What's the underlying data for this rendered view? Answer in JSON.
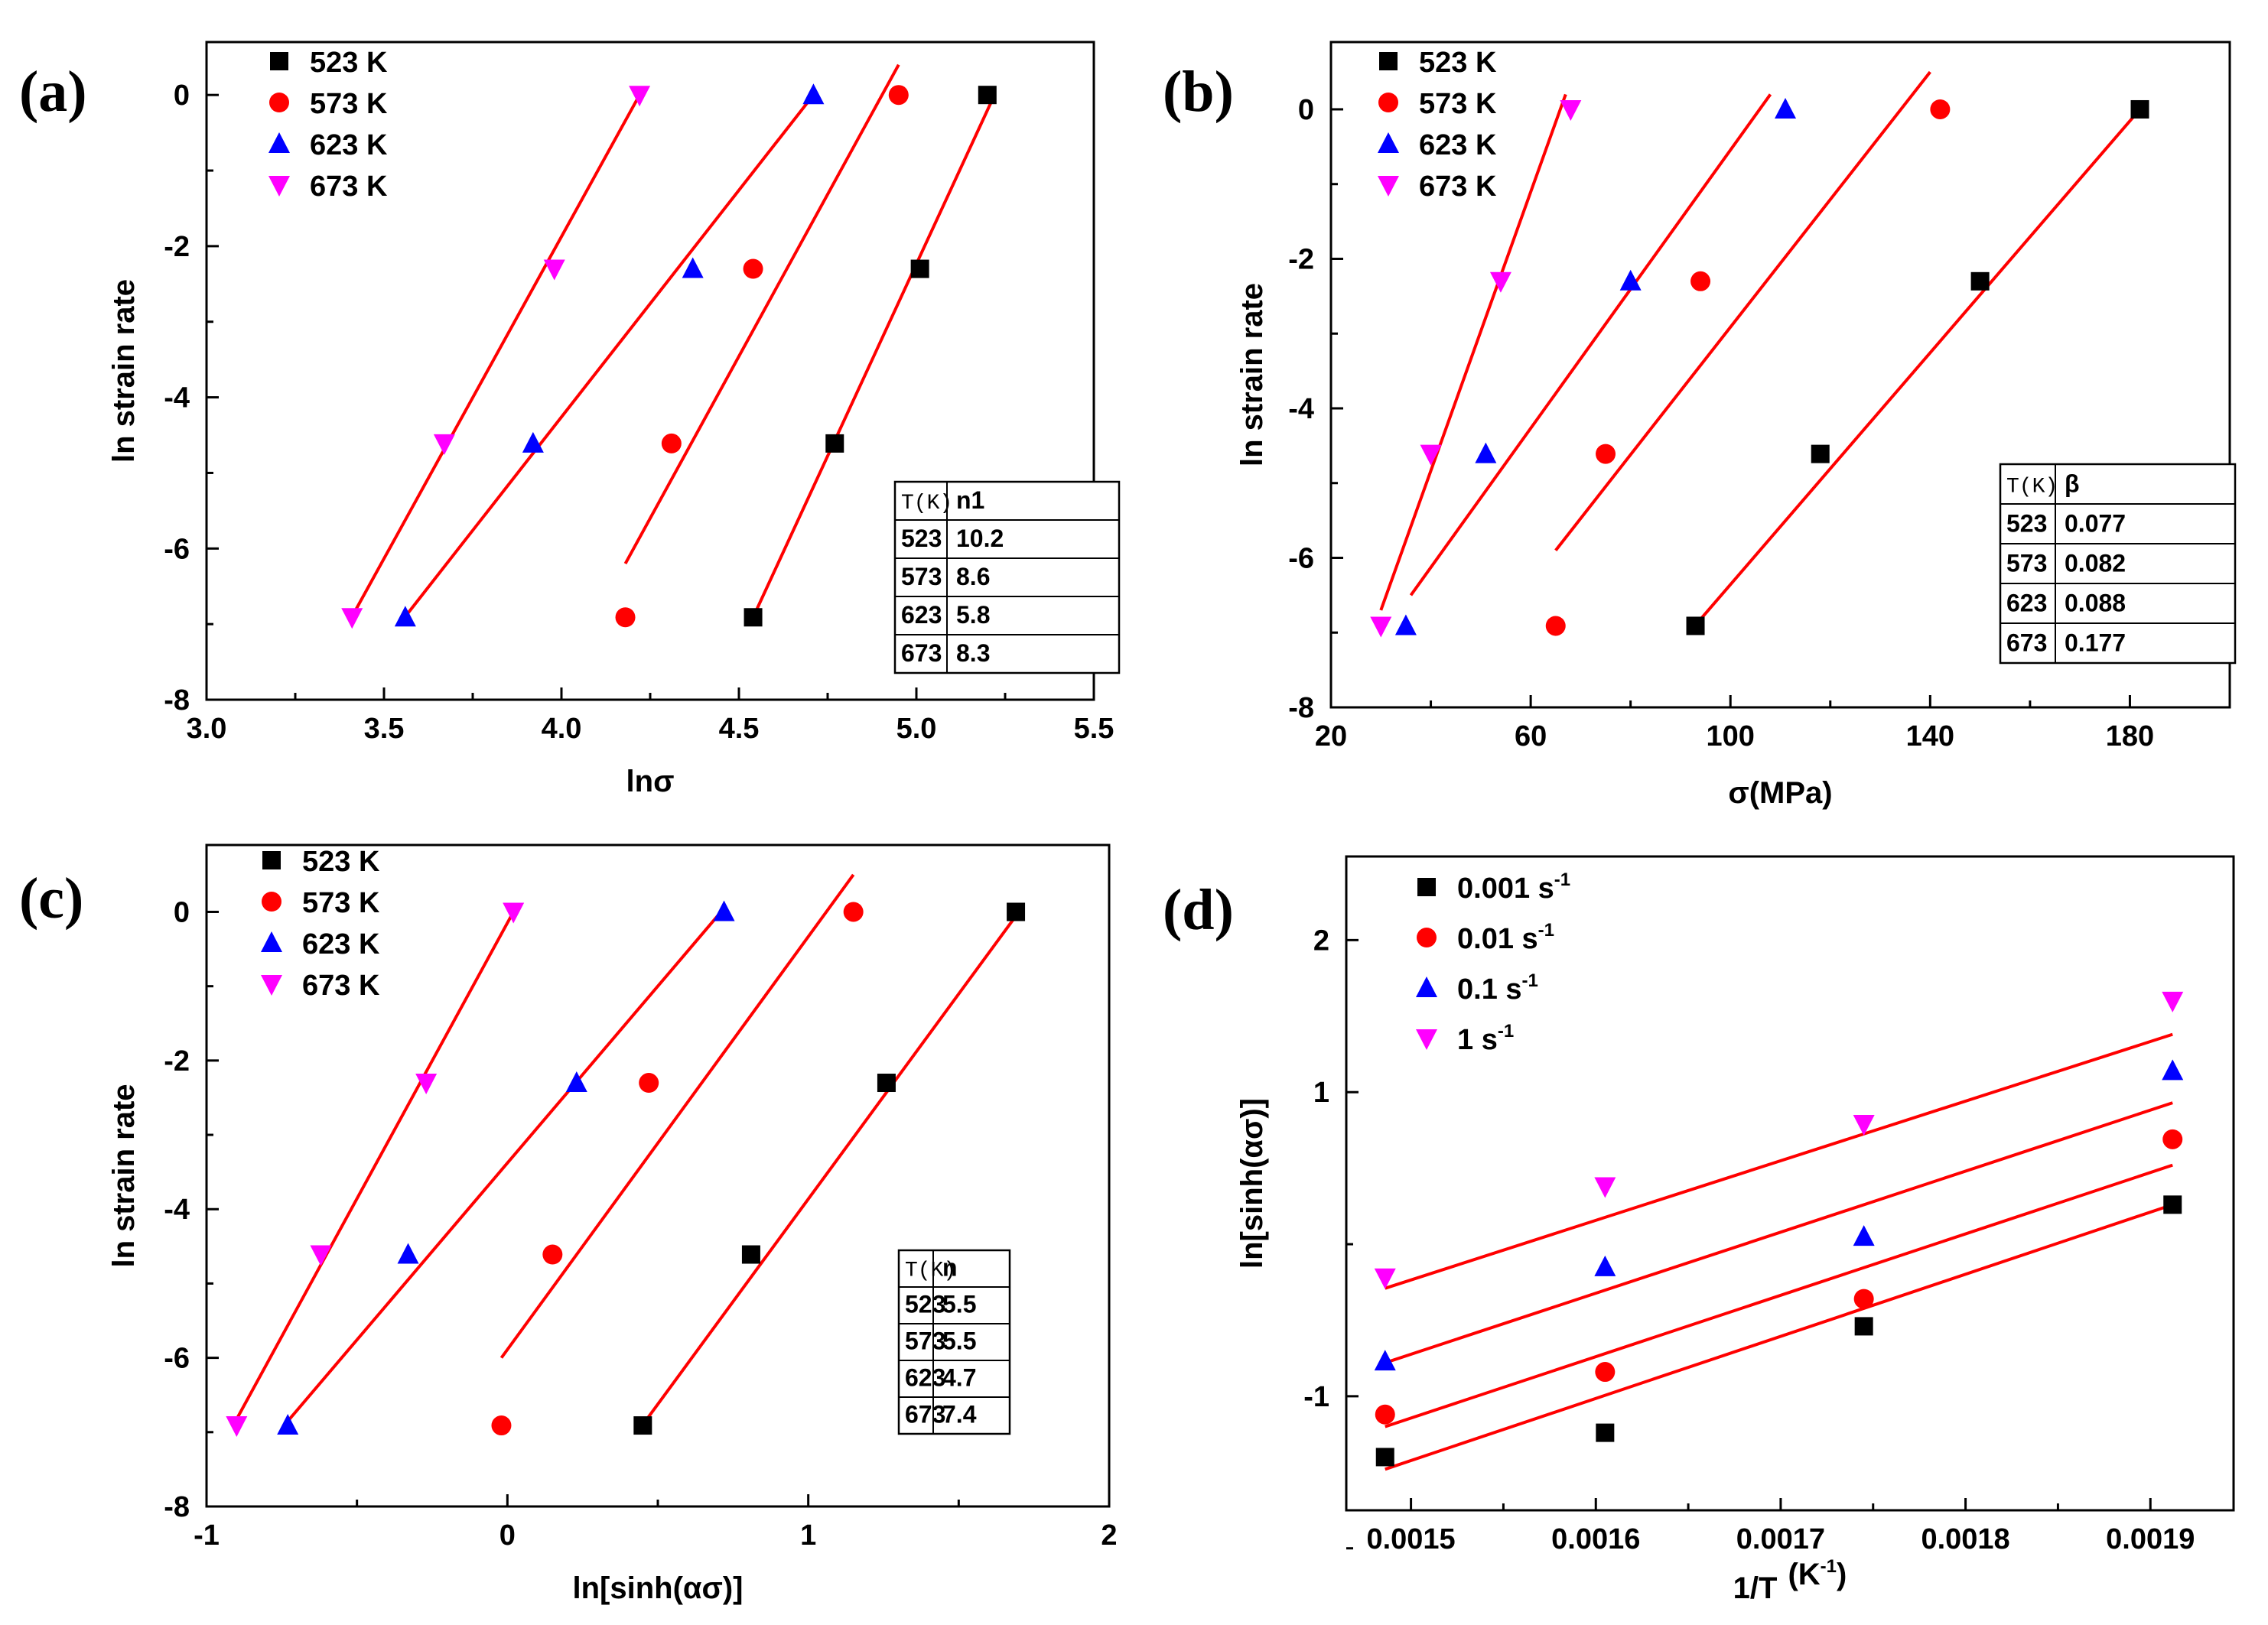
{
  "figure": {
    "colors": {
      "523": "#000000",
      "573": "#ff0000",
      "623": "#0000ff",
      "673": "#ff00ff",
      "fit": "#ff0000"
    }
  },
  "chart_data": [
    {
      "panel": "(a)",
      "type": "scatter",
      "xlabel": "lnσ",
      "ylabel": "ln strain rate",
      "xlim": [
        3.0,
        5.5
      ],
      "ylim": [
        -8,
        0.7
      ],
      "xticks": [
        "3.0",
        "3.5",
        "4.0",
        "4.5",
        "5.0",
        "5.5"
      ],
      "xtick_values": [
        3.0,
        3.5,
        4.0,
        4.5,
        5.0,
        5.5
      ],
      "yticks": [
        "0",
        "-2",
        "-4",
        "-6",
        "-8"
      ],
      "ytick_values": [
        0,
        -2,
        -4,
        -6,
        -8
      ],
      "series": [
        {
          "name": "523 K",
          "color": "#000000",
          "marker": "square",
          "x": [
            4.54,
            4.77,
            5.01,
            5.2
          ],
          "y": [
            -6.91,
            -4.61,
            -2.3,
            0
          ],
          "fit": [
            [
              4.54,
              -6.91
            ],
            [
              5.22,
              0
            ]
          ]
        },
        {
          "name": "573 K",
          "color": "#ff0000",
          "marker": "circle",
          "x": [
            4.18,
            4.31,
            4.54,
            4.95
          ],
          "y": [
            -6.91,
            -4.61,
            -2.3,
            0
          ],
          "fit": [
            [
              4.18,
              -6.2
            ],
            [
              4.95,
              0.4
            ]
          ]
        },
        {
          "name": "623 K",
          "color": "#0000ff",
          "marker": "triangle-up",
          "x": [
            3.56,
            3.92,
            4.37,
            4.71
          ],
          "y": [
            -6.91,
            -4.61,
            -2.3,
            0
          ],
          "fit": [
            [
              3.56,
              -6.9
            ],
            [
              4.71,
              0
            ]
          ]
        },
        {
          "name": "673 K",
          "color": "#ff00ff",
          "marker": "triangle-down",
          "x": [
            3.41,
            3.67,
            3.98,
            4.22
          ],
          "y": [
            -6.91,
            -4.61,
            -2.3,
            0
          ],
          "fit": [
            [
              3.41,
              -6.9
            ],
            [
              4.22,
              0
            ]
          ]
        }
      ],
      "table": {
        "headers": [
          "T(K)",
          "n1"
        ],
        "rows": [
          [
            "523",
            "10.2"
          ],
          [
            "573",
            "8.6"
          ],
          [
            "623",
            "5.8"
          ],
          [
            "673",
            "8.3"
          ]
        ]
      }
    },
    {
      "panel": "(b)",
      "type": "scatter",
      "xlabel": "σ(MPa)",
      "ylabel": "ln strain rate",
      "xlim": [
        20,
        200
      ],
      "ylim": [
        -8,
        0.9
      ],
      "xticks": [
        "20",
        "60",
        "100",
        "140",
        "180"
      ],
      "xtick_values": [
        20,
        60,
        100,
        140,
        180
      ],
      "yticks": [
        "0",
        "-2",
        "-4",
        "-6",
        "-8"
      ],
      "ytick_values": [
        0,
        -2,
        -4,
        -6,
        -8
      ],
      "series": [
        {
          "name": "523 K",
          "color": "#000000",
          "marker": "square",
          "x": [
            93,
            118,
            150,
            182
          ],
          "y": [
            -6.91,
            -4.61,
            -2.3,
            0
          ],
          "fit": [
            [
              93,
              -6.9
            ],
            [
              182,
              0
            ]
          ]
        },
        {
          "name": "573 K",
          "color": "#ff0000",
          "marker": "circle",
          "x": [
            65,
            75,
            94,
            142
          ],
          "y": [
            -6.91,
            -4.61,
            -2.3,
            0
          ],
          "fit": [
            [
              65,
              -5.9
            ],
            [
              140,
              0.5
            ]
          ]
        },
        {
          "name": "623 K",
          "color": "#0000ff",
          "marker": "triangle-up",
          "x": [
            35,
            51,
            80,
            111
          ],
          "y": [
            -6.91,
            -4.61,
            -2.3,
            0
          ],
          "fit": [
            [
              36,
              -6.5
            ],
            [
              108,
              0.2
            ]
          ]
        },
        {
          "name": "673 K",
          "color": "#ff00ff",
          "marker": "triangle-down",
          "x": [
            30,
            40,
            54,
            68
          ],
          "y": [
            -6.91,
            -4.61,
            -2.3,
            0
          ],
          "fit": [
            [
              30,
              -6.7
            ],
            [
              67,
              0.2
            ]
          ]
        }
      ],
      "table": {
        "headers": [
          "T(K)",
          "β"
        ],
        "rows": [
          [
            "523",
            "0.077"
          ],
          [
            "573",
            "0.082"
          ],
          [
            "623",
            "0.088"
          ],
          [
            "673",
            "0.177"
          ]
        ]
      }
    },
    {
      "panel": "(c)",
      "type": "scatter",
      "xlabel": "ln[sinh(ασ)]",
      "ylabel": "ln strain rate",
      "xlim": [
        -1,
        2
      ],
      "ylim": [
        -8,
        0.9
      ],
      "xticks": [
        "-1",
        "0",
        "1",
        "2"
      ],
      "xtick_values": [
        -1,
        0,
        1,
        2
      ],
      "yticks": [
        "0",
        "-2",
        "-4",
        "-6",
        "-8"
      ],
      "ytick_values": [
        0,
        -2,
        -4,
        -6,
        -8
      ],
      "series": [
        {
          "name": "523 K",
          "color": "#000000",
          "marker": "square",
          "x": [
            0.45,
            0.81,
            1.26,
            1.69
          ],
          "y": [
            -6.91,
            -4.61,
            -2.3,
            0
          ],
          "fit": [
            [
              0.45,
              -6.9
            ],
            [
              1.7,
              0
            ]
          ]
        },
        {
          "name": "573 K",
          "color": "#ff0000",
          "marker": "circle",
          "x": [
            -0.02,
            0.15,
            0.47,
            1.15
          ],
          "y": [
            -6.91,
            -4.61,
            -2.3,
            0
          ],
          "fit": [
            [
              -0.02,
              -6.0
            ],
            [
              1.15,
              0.5
            ]
          ]
        },
        {
          "name": "623 K",
          "color": "#0000ff",
          "marker": "triangle-up",
          "x": [
            -0.73,
            -0.33,
            0.23,
            0.72
          ],
          "y": [
            -6.91,
            -4.61,
            -2.3,
            0
          ],
          "fit": [
            [
              -0.74,
              -6.9
            ],
            [
              0.71,
              0
            ]
          ]
        },
        {
          "name": "673 K",
          "color": "#ff00ff",
          "marker": "triangle-down",
          "x": [
            -0.9,
            -0.62,
            -0.27,
            0.02
          ],
          "y": [
            -6.91,
            -4.61,
            -2.3,
            0
          ],
          "fit": [
            [
              -0.91,
              -6.9
            ],
            [
              0.02,
              0
            ]
          ]
        }
      ],
      "table": {
        "headers": [
          "T(K)",
          "n"
        ],
        "rows": [
          [
            "523",
            "5.5"
          ],
          [
            "573",
            "5.5"
          ],
          [
            "623",
            "4.7"
          ],
          [
            "673",
            "7.4"
          ]
        ]
      }
    },
    {
      "panel": "(d)",
      "type": "scatter",
      "xlabel": "1/T",
      "xlabel_unit": "(K",
      "xlabel_unit_sup": "-1",
      "xlabel_unit_close": ")",
      "ylabel": "ln[sinh(ασ)]",
      "xlim": [
        0.001465,
        0.001945
      ],
      "ylim": [
        -1.75,
        2.55
      ],
      "xticks": [
        "0.0015",
        "0.0016",
        "0.0017",
        "0.0018",
        "0.0019"
      ],
      "xtick_values": [
        0.0015,
        0.0016,
        0.0017,
        0.0018,
        0.0019
      ],
      "yticks": [
        "2",
        "1",
        "-1"
      ],
      "ytick_values": [
        2,
        1,
        -1
      ],
      "minor_yticks": [
        0,
        -2
      ],
      "series": [
        {
          "name": "0.001 s",
          "sup": "-1",
          "color": "#000000",
          "marker": "square",
          "x": [
            0.001486,
            0.001605,
            0.001745,
            0.001912
          ],
          "y": [
            -1.4,
            -1.24,
            -0.54,
            0.26
          ],
          "fit": [
            [
              0.001486,
              -1.48
            ],
            [
              0.001912,
              0.26
            ]
          ]
        },
        {
          "name": "0.01 s",
          "sup": "-1",
          "color": "#ff0000",
          "marker": "circle",
          "x": [
            0.001486,
            0.001605,
            0.001745,
            0.001912
          ],
          "y": [
            -1.12,
            -0.84,
            -0.36,
            0.69
          ],
          "fit": [
            [
              0.001486,
              -1.2
            ],
            [
              0.001912,
              0.52
            ]
          ]
        },
        {
          "name": "0.1 s",
          "sup": "-1",
          "color": "#0000ff",
          "marker": "triangle-up",
          "x": [
            0.001486,
            0.001605,
            0.001745,
            0.001912
          ],
          "y": [
            -0.77,
            -0.15,
            0.05,
            1.14
          ],
          "fit": [
            [
              0.001486,
              -0.78
            ],
            [
              0.001912,
              0.93
            ]
          ]
        },
        {
          "name": "1 s",
          "sup": "-1",
          "color": "#ff00ff",
          "marker": "triangle-down",
          "x": [
            0.001486,
            0.001605,
            0.001745,
            0.001912
          ],
          "y": [
            -0.22,
            0.38,
            0.79,
            1.6
          ],
          "fit": [
            [
              0.001486,
              -0.29
            ],
            [
              0.001912,
              1.38
            ]
          ]
        }
      ],
      "table": null
    }
  ]
}
